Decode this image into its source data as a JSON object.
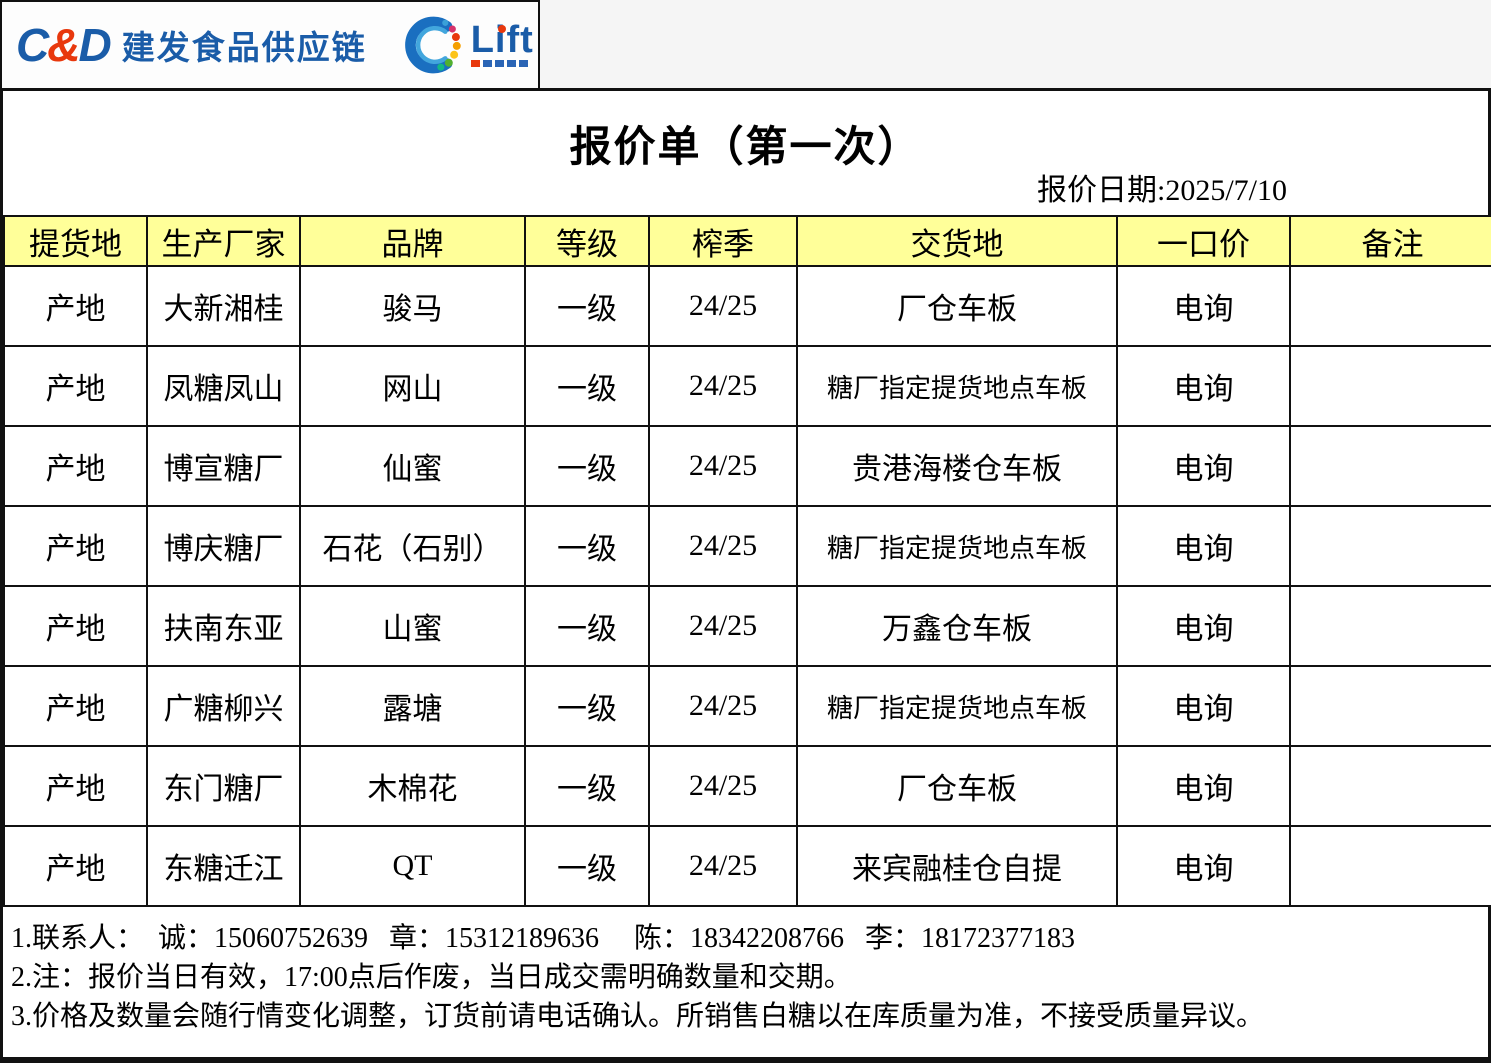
{
  "logo": {
    "cd_c": "C",
    "cd_amp": "&",
    "cd_d": "D",
    "company_name": "建发食品供应链",
    "lift_text": "Lift",
    "colors": {
      "brand_blue": "#1a5ca8",
      "brand_red": "#e8380d"
    }
  },
  "header": {
    "title": "报价单（第一次）",
    "date": "报价日期:2025/7/10"
  },
  "table": {
    "columns": [
      "提货地",
      "生产厂家",
      "品牌",
      "等级",
      "榨季",
      "交货地",
      "一口价",
      "备注"
    ],
    "rows": [
      [
        "产地",
        "大新湘桂",
        "骏马",
        "一级",
        "24/25",
        "厂仓车板",
        "电询",
        ""
      ],
      [
        "产地",
        "凤糖凤山",
        "网山",
        "一级",
        "24/25",
        "糖厂指定提货地点车板",
        "电询",
        ""
      ],
      [
        "产地",
        "博宣糖厂",
        "仙蜜",
        "一级",
        "24/25",
        "贵港海楼仓车板",
        "电询",
        ""
      ],
      [
        "产地",
        "博庆糖厂",
        "石花（石别）",
        "一级",
        "24/25",
        "糖厂指定提货地点车板",
        "电询",
        ""
      ],
      [
        "产地",
        "扶南东亚",
        "山蜜",
        "一级",
        "24/25",
        "万鑫仓车板",
        "电询",
        ""
      ],
      [
        "产地",
        "广糖柳兴",
        "露塘",
        "一级",
        "24/25",
        "糖厂指定提货地点车板",
        "电询",
        ""
      ],
      [
        "产地",
        "东门糖厂",
        "木棉花",
        "一级",
        "24/25",
        "厂仓车板",
        "电询",
        ""
      ],
      [
        "产地",
        "东糖迁江",
        "QT",
        "一级",
        "24/25",
        "来宾融桂仓自提",
        "电询",
        ""
      ]
    ],
    "header_bg": "#ffff99"
  },
  "notes": [
    "1.联系人：  诚：15060752639   章：15312189636     陈：18342208766   李：18172377183",
    "2.注：报价当日有效，17:00点后作废，当日成交需明确数量和交期。",
    "3.价格及数量会随行情变化调整，订货前请电话确认。所销售白糖以在库质量为准，不接受质量异议。"
  ]
}
